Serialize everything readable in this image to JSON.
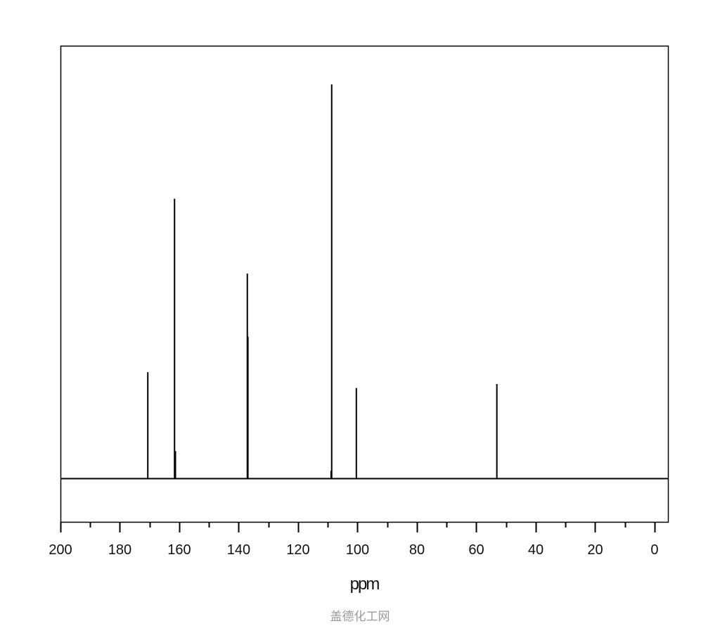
{
  "chart_data": {
    "type": "line",
    "subtype": "nmr-stick-spectrum",
    "title": "",
    "xlabel": "ppm",
    "ylabel": "",
    "xlim": [
      200,
      -4.5
    ],
    "x_reversed": true,
    "x_ticks_major": [
      200,
      180,
      160,
      140,
      120,
      100,
      80,
      60,
      40,
      20,
      0
    ],
    "x_tick_labels": [
      "200",
      "180",
      "160",
      "140",
      "120",
      "100",
      "80",
      "60",
      "40",
      "20",
      "0"
    ],
    "x_ticks_minor_step": 10,
    "grid": false,
    "line_color": "#000000",
    "peaks": [
      {
        "ppm": 170.6,
        "intensity": 27
      },
      {
        "ppm": 161.6,
        "intensity": 71
      },
      {
        "ppm": 161.3,
        "intensity": 7
      },
      {
        "ppm": 137.1,
        "intensity": 52
      },
      {
        "ppm": 136.9,
        "intensity": 36
      },
      {
        "ppm": 108.9,
        "intensity": 2
      },
      {
        "ppm": 108.7,
        "intensity": 100
      },
      {
        "ppm": 100.4,
        "intensity": 23
      },
      {
        "ppm": 53.1,
        "intensity": 24
      }
    ]
  },
  "watermark": "盖德化工网"
}
